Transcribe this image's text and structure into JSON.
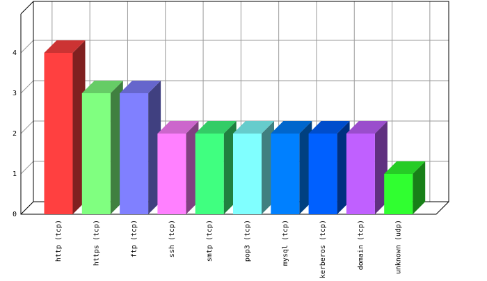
{
  "chart_data": {
    "type": "bar3d",
    "categories": [
      "http (tcp)",
      "https (tcp)",
      "ftp (tcp)",
      "ssh (tcp)",
      "smtp (tcp)",
      "pop3 (tcp)",
      "mysql (tcp)",
      "kerberos (tcp)",
      "domain (tcp)",
      "unknown (udp)"
    ],
    "values": [
      4,
      3,
      3,
      2,
      2,
      2,
      2,
      2,
      2,
      1
    ],
    "colors": [
      "#ff4040",
      "#80ff80",
      "#8080ff",
      "#ff80ff",
      "#40ff80",
      "#80ffff",
      "#0080ff",
      "#0060ff",
      "#c060ff",
      "#30ff30"
    ],
    "ylim": [
      0,
      5
    ],
    "yticks": [
      0,
      1,
      2,
      3,
      4
    ],
    "grid": true
  }
}
